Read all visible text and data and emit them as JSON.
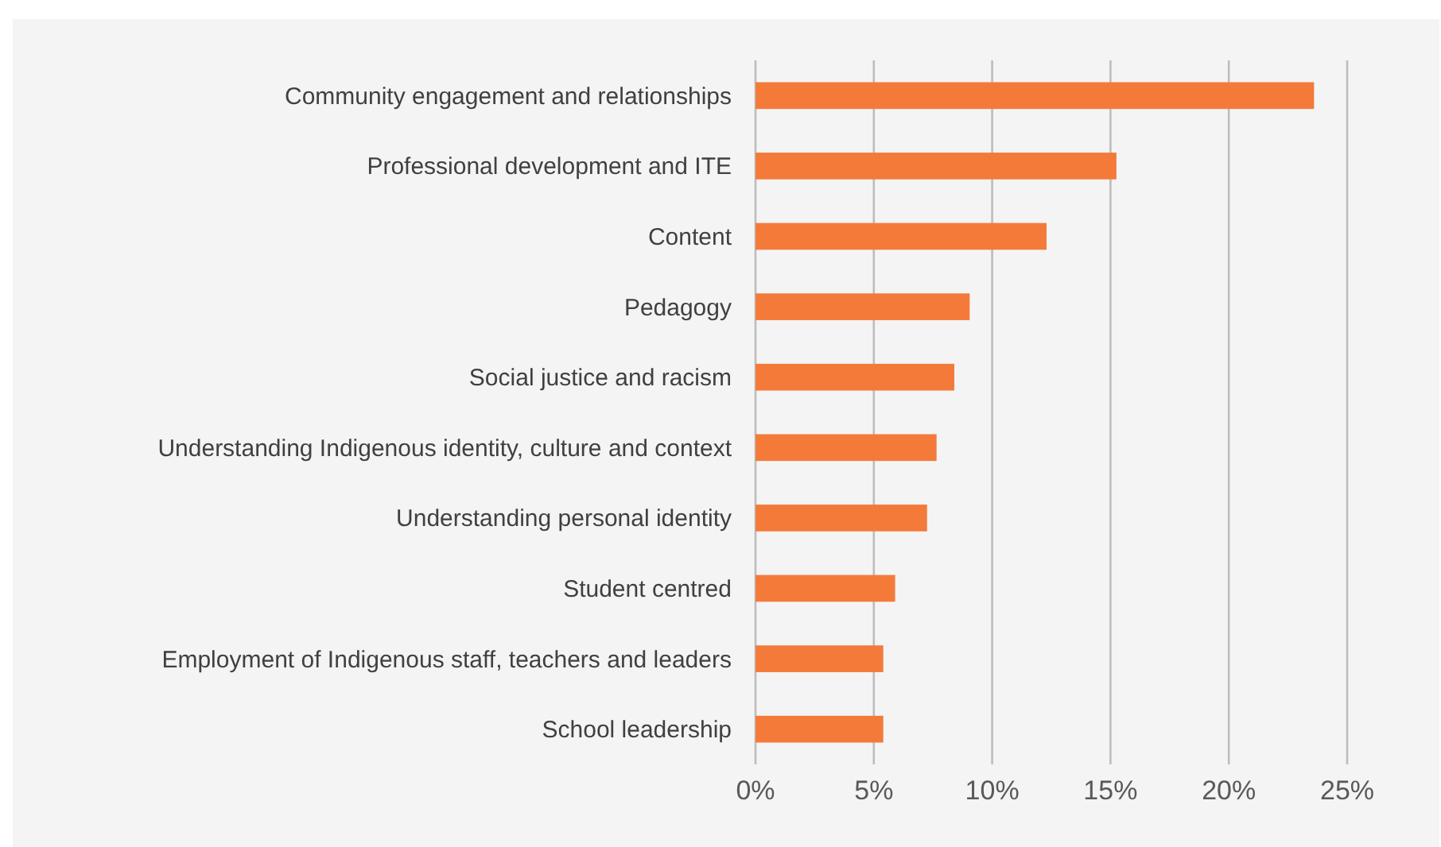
{
  "chart_data": {
    "type": "bar",
    "orientation": "horizontal",
    "categories": [
      "Community engagement and relationships",
      "Professional development and ITE",
      "Content",
      "Pedagogy",
      "Social justice and racism",
      "Understanding Indigenous identity, culture and context",
      "Understanding personal identity",
      "Student centred",
      "Employment of Indigenous staff, teachers and leaders",
      "School leadership"
    ],
    "values": [
      23.6,
      15.25,
      12.3,
      9.05,
      8.4,
      7.65,
      7.25,
      5.9,
      5.4,
      5.4
    ],
    "color": "#f47a3a",
    "xlim": [
      0,
      25
    ],
    "xticks": [
      {
        "value": 0,
        "label": "0%"
      },
      {
        "value": 5,
        "label": "5%"
      },
      {
        "value": 10,
        "label": "10%"
      },
      {
        "value": 15,
        "label": "15%"
      },
      {
        "value": 20,
        "label": "20%"
      },
      {
        "value": 25,
        "label": "25%"
      }
    ],
    "grid": "x"
  }
}
